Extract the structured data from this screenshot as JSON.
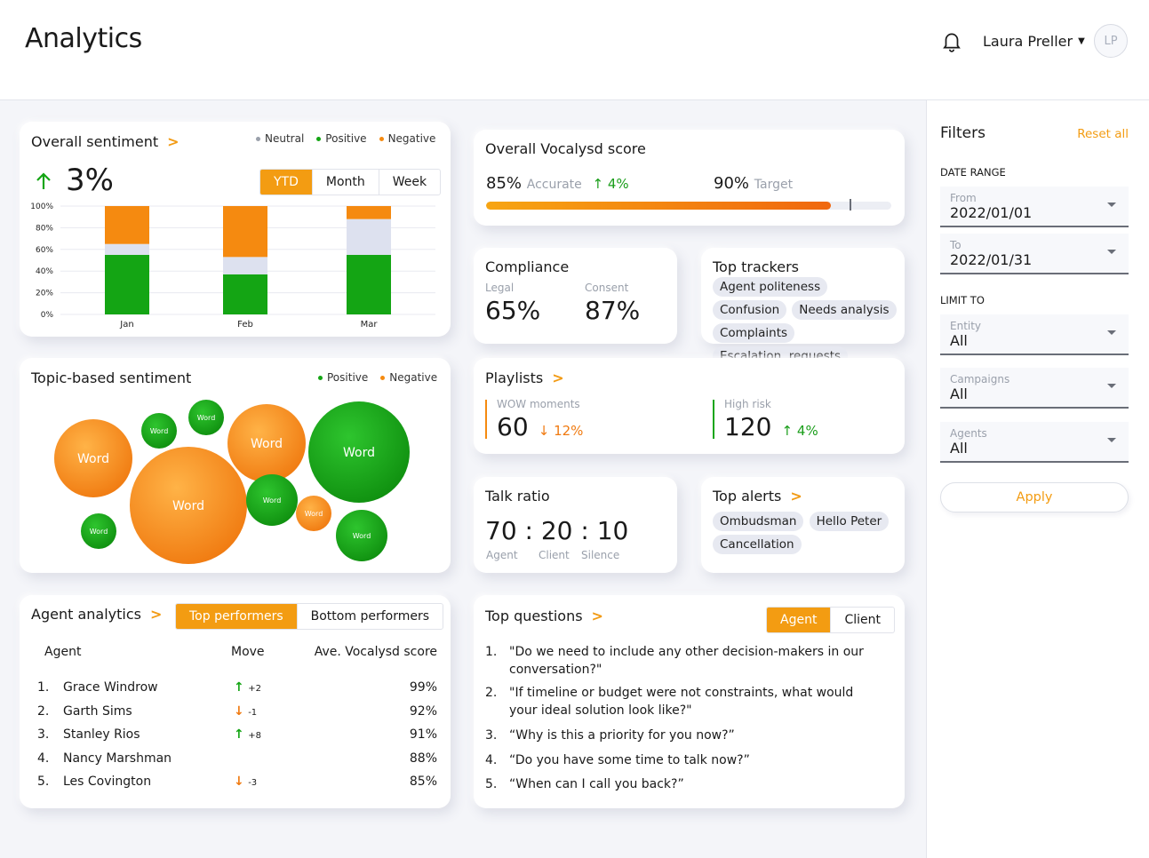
{
  "header": {
    "title": "Analytics",
    "user_name": "Laura Preller",
    "avatar_initials": "LP"
  },
  "colors": {
    "accent": "#f39c12",
    "positive": "#14a514",
    "negative": "#f58a10",
    "neutral": "#dde1ef"
  },
  "sentiment": {
    "title": "Overall sentiment",
    "legend": [
      "Neutral",
      "Positive",
      "Negative"
    ],
    "change": "3%",
    "periods": [
      "YTD",
      "Month",
      "Week"
    ],
    "active_period": "YTD"
  },
  "chart_data": {
    "type": "bar",
    "stacked": true,
    "categories": [
      "Jan",
      "Feb",
      "Mar"
    ],
    "series": [
      {
        "name": "Positive",
        "values": [
          55,
          37,
          55
        ]
      },
      {
        "name": "Neutral",
        "values": [
          10,
          16,
          33
        ]
      },
      {
        "name": "Negative",
        "values": [
          35,
          47,
          12
        ]
      }
    ],
    "y_ticks": [
      "100%",
      "80%",
      "60%",
      "40%",
      "20%",
      "0%"
    ],
    "ylim": [
      0,
      100
    ],
    "grid": true
  },
  "score": {
    "title": "Overall Vocalysd score",
    "accurate_value": "85%",
    "accurate_label": "Accurate",
    "accurate_change": "4%",
    "target_value": "90%",
    "target_label": "Target",
    "progress": 0.85,
    "target": 0.9
  },
  "compliance": {
    "title": "Compliance",
    "legal_label": "Legal",
    "legal_value": "65%",
    "consent_label": "Consent",
    "consent_value": "87%"
  },
  "trackers": {
    "title": "Top trackers",
    "items": [
      "Agent politeness",
      "Confusion",
      "Needs analysis",
      "Complaints",
      "Escalation. requests"
    ]
  },
  "topic": {
    "title": "Topic-based sentiment",
    "legend": [
      "Positive",
      "Negative"
    ],
    "bubble_label": "Word",
    "bubbles": [
      {
        "label": "Word",
        "sentiment": "negative",
        "size": 3
      },
      {
        "label": "Word",
        "sentiment": "positive",
        "size": 1
      },
      {
        "label": "Word",
        "sentiment": "positive",
        "size": 1
      },
      {
        "label": "Word",
        "sentiment": "negative",
        "size": 3
      },
      {
        "label": "Word",
        "sentiment": "positive",
        "size": 5
      },
      {
        "label": "Word",
        "sentiment": "negative",
        "size": 6
      },
      {
        "label": "Word",
        "sentiment": "positive",
        "size": 2
      },
      {
        "label": "Word",
        "sentiment": "positive",
        "size": 1
      },
      {
        "label": "Word",
        "sentiment": "negative",
        "size": 1
      },
      {
        "label": "Word",
        "sentiment": "positive",
        "size": 2
      }
    ]
  },
  "playlists": {
    "title": "Playlists",
    "wow_label": "WOW moments",
    "wow_value": "60",
    "wow_change": "12%",
    "risk_label": "High risk",
    "risk_value": "120",
    "risk_change": "4%"
  },
  "talk": {
    "title": "Talk ratio",
    "ratio": "70 : 20 : 10",
    "labels": [
      "Agent",
      "Client",
      "Silence"
    ]
  },
  "alerts": {
    "title": "Top alerts",
    "items": [
      "Ombudsman",
      "Hello Peter",
      "Cancellation"
    ]
  },
  "agents": {
    "title": "Agent analytics",
    "tabs": [
      "Top performers",
      "Bottom performers"
    ],
    "columns": [
      "Agent",
      "Move",
      "Ave. Vocalysd score"
    ],
    "rows": [
      {
        "rank": "1.",
        "name": "Grace Windrow",
        "dir": "up",
        "move": "+2",
        "score": "99%"
      },
      {
        "rank": "2.",
        "name": "Garth Sims",
        "dir": "down",
        "move": "-1",
        "score": "92%"
      },
      {
        "rank": "3.",
        "name": "Stanley Rios",
        "dir": "up",
        "move": "+8",
        "score": "91%"
      },
      {
        "rank": "4.",
        "name": "Nancy Marshman",
        "dir": "",
        "move": "",
        "score": "88%"
      },
      {
        "rank": "5.",
        "name": "Les Covington",
        "dir": "down",
        "move": "-3",
        "score": "85%"
      }
    ]
  },
  "questions": {
    "title": "Top questions",
    "tabs": [
      "Agent",
      "Client"
    ],
    "items": [
      {
        "num": "1.",
        "text": "\"Do we need to include any other decision-makers in our conversation?\""
      },
      {
        "num": "2.",
        "text": "\"If timeline or budget were not constraints, what would your ideal solution look like?\""
      },
      {
        "num": "3.",
        "text": "“Why is this a priority for you now?”"
      },
      {
        "num": "4.",
        "text": "“Do you have some time to talk now?”"
      },
      {
        "num": "5.",
        "text": "“When can I call you back?”"
      }
    ]
  },
  "filters": {
    "title": "Filters",
    "reset": "Reset all",
    "date_range": "DATE RANGE",
    "from_label": "From",
    "from_value": "2022/01/01",
    "to_label": "To",
    "to_value": "2022/01/31",
    "limit_to": "LIMIT TO",
    "entity_label": "Entity",
    "entity_value": "All",
    "campaigns_label": "Campaigns",
    "campaigns_value": "All",
    "agents_label": "Agents",
    "agents_value": "All",
    "apply": "Apply"
  }
}
